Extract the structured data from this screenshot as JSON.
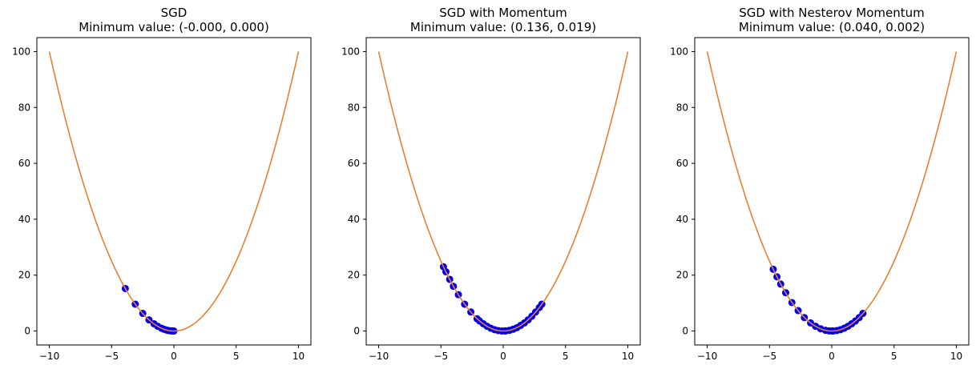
{
  "chart_data": [
    {
      "type": "line+scatter",
      "title": "SGD",
      "subtitle": "Minimum value: (-0.000, 0.000)",
      "xlabel": "",
      "ylabel": "",
      "xlim": [
        -11,
        11
      ],
      "ylim": [
        -5,
        105
      ],
      "xticks": [
        -10,
        -5,
        0,
        5,
        10
      ],
      "yticks": [
        0,
        20,
        40,
        60,
        80,
        100
      ],
      "grid": false,
      "curve": {
        "function": "y = x^2",
        "x_range": [
          -10,
          10
        ],
        "color": "#e88030"
      },
      "path": {
        "color": "#0000ee",
        "points": [
          [
            -3.9,
            15.2
          ],
          [
            -3.1,
            9.6
          ],
          [
            -2.5,
            6.3
          ],
          [
            -2.0,
            4.0
          ],
          [
            -1.6,
            2.6
          ],
          [
            -1.3,
            1.7
          ],
          [
            -1.0,
            1.0
          ],
          [
            -0.8,
            0.64
          ],
          [
            -0.6,
            0.36
          ],
          [
            -0.45,
            0.2
          ],
          [
            -0.3,
            0.09
          ],
          [
            -0.2,
            0.04
          ],
          [
            -0.1,
            0.01
          ],
          [
            0.0,
            0.0
          ]
        ]
      }
    },
    {
      "type": "line+scatter",
      "title": "SGD with Momentum",
      "subtitle": "Minimum value: (0.136, 0.019)",
      "xlabel": "",
      "ylabel": "",
      "xlim": [
        -11,
        11
      ],
      "ylim": [
        -5,
        105
      ],
      "xticks": [
        -10,
        -5,
        0,
        5,
        10
      ],
      "yticks": [
        0,
        20,
        40,
        60,
        80,
        100
      ],
      "grid": false,
      "curve": {
        "function": "y = x^2",
        "x_range": [
          -10,
          10
        ],
        "color": "#e88030"
      },
      "path": {
        "color": "#0000ee",
        "points": [
          [
            -4.8,
            23.0
          ],
          [
            -4.6,
            21.2
          ],
          [
            -4.3,
            18.5
          ],
          [
            -4.0,
            16.0
          ],
          [
            -3.6,
            13.0
          ],
          [
            -3.1,
            9.6
          ],
          [
            -2.6,
            6.8
          ],
          [
            -2.1,
            4.4
          ],
          [
            -1.9,
            3.6
          ],
          [
            -1.6,
            2.6
          ],
          [
            -1.3,
            1.7
          ],
          [
            -1.0,
            1.0
          ],
          [
            -0.7,
            0.49
          ],
          [
            -0.4,
            0.16
          ],
          [
            -0.1,
            0.01
          ],
          [
            0.2,
            0.04
          ],
          [
            0.5,
            0.25
          ],
          [
            0.8,
            0.64
          ],
          [
            1.1,
            1.2
          ],
          [
            1.4,
            2.0
          ],
          [
            1.7,
            2.9
          ],
          [
            2.0,
            4.0
          ],
          [
            2.3,
            5.3
          ],
          [
            2.6,
            6.8
          ],
          [
            2.9,
            8.4
          ],
          [
            3.1,
            9.6
          ],
          [
            0.136,
            0.019
          ]
        ]
      }
    },
    {
      "type": "line+scatter",
      "title": "SGD with Nesterov Momentum",
      "subtitle": "Minimum value: (0.040, 0.002)",
      "xlabel": "",
      "ylabel": "",
      "xlim": [
        -11,
        11
      ],
      "ylim": [
        -5,
        105
      ],
      "xticks": [
        -10,
        -5,
        0,
        5,
        10
      ],
      "yticks": [
        0,
        20,
        40,
        60,
        80,
        100
      ],
      "grid": false,
      "curve": {
        "function": "y = x^2",
        "x_range": [
          -10,
          10
        ],
        "color": "#e88030"
      },
      "path": {
        "color": "#0000ee",
        "points": [
          [
            -4.7,
            22.1
          ],
          [
            -4.4,
            19.4
          ],
          [
            -4.1,
            16.8
          ],
          [
            -3.7,
            13.7
          ],
          [
            -3.2,
            10.2
          ],
          [
            -2.7,
            7.3
          ],
          [
            -2.2,
            4.8
          ],
          [
            -1.7,
            2.9
          ],
          [
            -1.3,
            1.7
          ],
          [
            -0.9,
            0.81
          ],
          [
            -0.5,
            0.25
          ],
          [
            -0.2,
            0.04
          ],
          [
            0.1,
            0.01
          ],
          [
            0.4,
            0.16
          ],
          [
            0.7,
            0.49
          ],
          [
            1.0,
            1.0
          ],
          [
            1.3,
            1.7
          ],
          [
            1.6,
            2.6
          ],
          [
            1.9,
            3.6
          ],
          [
            2.2,
            4.8
          ],
          [
            2.5,
            6.3
          ],
          [
            0.04,
            0.002
          ]
        ]
      }
    }
  ]
}
